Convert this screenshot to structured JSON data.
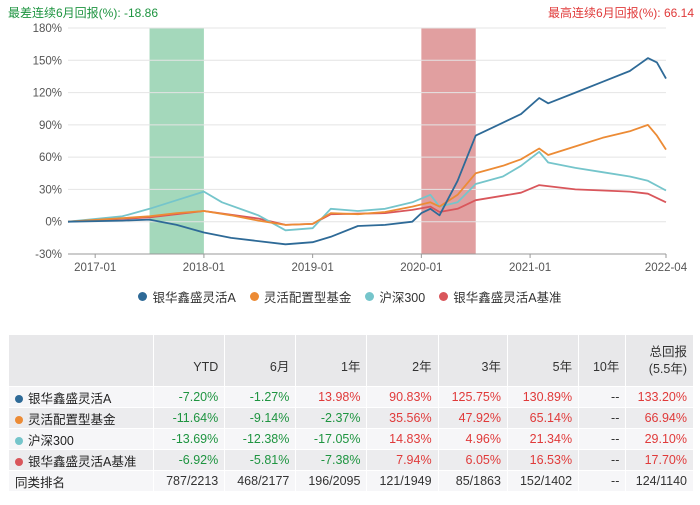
{
  "header": {
    "left": "最差连续6月回报(%): -18.86",
    "right": "最高连续6月回报(%): 66.14"
  },
  "colors": {
    "fund_a": "#2e6a97",
    "flex_category": "#ec8b35",
    "csi300": "#75c5cb",
    "benchmark": "#d9565b",
    "worst_band": "#86cba4",
    "best_band": "#d77f80",
    "positive": "#e03a3a",
    "negative": "#1e9440"
  },
  "chart_data": {
    "type": "line",
    "x_labels": [
      "2017-01",
      "2018-01",
      "2019-01",
      "2020-01",
      "2021-01",
      "2022-04"
    ],
    "y_ticks": [
      "180%",
      "150%",
      "120%",
      "90%",
      "60%",
      "30%",
      "0%",
      "-30%"
    ],
    "ylim": [
      -30,
      180
    ],
    "x_start": "2016-10",
    "x_end": "2022-04",
    "highlight_bands": [
      {
        "type": "worst_6m",
        "from": "2017-07",
        "to": "2018-01"
      },
      {
        "type": "best_6m",
        "from": "2020-01",
        "to": "2020-07"
      }
    ],
    "series": [
      {
        "name": "银华鑫盛灵活A",
        "color": "#2e6a97",
        "points": [
          [
            "2016-10",
            0
          ],
          [
            "2017-04",
            1
          ],
          [
            "2017-07",
            2
          ],
          [
            "2017-10",
            -3
          ],
          [
            "2018-01",
            -10
          ],
          [
            "2018-04",
            -15
          ],
          [
            "2018-07",
            -18
          ],
          [
            "2018-10",
            -21
          ],
          [
            "2019-01",
            -19
          ],
          [
            "2019-03",
            -14
          ],
          [
            "2019-06",
            -4
          ],
          [
            "2019-09",
            -3
          ],
          [
            "2019-12",
            0
          ],
          [
            "2020-01",
            8
          ],
          [
            "2020-02",
            12
          ],
          [
            "2020-03",
            6
          ],
          [
            "2020-05",
            38
          ],
          [
            "2020-07",
            80
          ],
          [
            "2020-10",
            92
          ],
          [
            "2020-12",
            100
          ],
          [
            "2021-02",
            115
          ],
          [
            "2021-03",
            110
          ],
          [
            "2021-06",
            120
          ],
          [
            "2021-09",
            130
          ],
          [
            "2021-12",
            140
          ],
          [
            "2022-02",
            152
          ],
          [
            "2022-03",
            148
          ],
          [
            "2022-04",
            133
          ]
        ]
      },
      {
        "name": "灵活配置型基金",
        "color": "#ec8b35",
        "points": [
          [
            "2016-10",
            0
          ],
          [
            "2017-07",
            5
          ],
          [
            "2017-10",
            8
          ],
          [
            "2018-01",
            10
          ],
          [
            "2018-04",
            6
          ],
          [
            "2018-07",
            1
          ],
          [
            "2018-10",
            -3
          ],
          [
            "2019-01",
            -2
          ],
          [
            "2019-03",
            8
          ],
          [
            "2019-06",
            7
          ],
          [
            "2019-09",
            9
          ],
          [
            "2019-12",
            14
          ],
          [
            "2020-02",
            18
          ],
          [
            "2020-03",
            14
          ],
          [
            "2020-05",
            25
          ],
          [
            "2020-07",
            45
          ],
          [
            "2020-10",
            52
          ],
          [
            "2020-12",
            58
          ],
          [
            "2021-02",
            68
          ],
          [
            "2021-03",
            62
          ],
          [
            "2021-06",
            70
          ],
          [
            "2021-09",
            78
          ],
          [
            "2021-12",
            84
          ],
          [
            "2022-02",
            90
          ],
          [
            "2022-03",
            80
          ],
          [
            "2022-04",
            67
          ]
        ]
      },
      {
        "name": "沪深300",
        "color": "#75c5cb",
        "points": [
          [
            "2016-10",
            0
          ],
          [
            "2017-04",
            5
          ],
          [
            "2017-07",
            12
          ],
          [
            "2017-10",
            20
          ],
          [
            "2018-01",
            28
          ],
          [
            "2018-03",
            18
          ],
          [
            "2018-07",
            6
          ],
          [
            "2018-10",
            -8
          ],
          [
            "2019-01",
            -6
          ],
          [
            "2019-03",
            12
          ],
          [
            "2019-06",
            10
          ],
          [
            "2019-09",
            12
          ],
          [
            "2019-12",
            18
          ],
          [
            "2020-02",
            25
          ],
          [
            "2020-03",
            14
          ],
          [
            "2020-05",
            18
          ],
          [
            "2020-07",
            35
          ],
          [
            "2020-10",
            42
          ],
          [
            "2020-12",
            52
          ],
          [
            "2021-02",
            65
          ],
          [
            "2021-03",
            55
          ],
          [
            "2021-06",
            50
          ],
          [
            "2021-09",
            46
          ],
          [
            "2021-12",
            42
          ],
          [
            "2022-02",
            38
          ],
          [
            "2022-04",
            29
          ]
        ]
      },
      {
        "name": "银华鑫盛灵活A基准",
        "color": "#d9565b",
        "points": [
          [
            "2016-10",
            0
          ],
          [
            "2017-07",
            4
          ],
          [
            "2018-01",
            10
          ],
          [
            "2018-07",
            3
          ],
          [
            "2018-10",
            -3
          ],
          [
            "2019-01",
            -2
          ],
          [
            "2019-03",
            7
          ],
          [
            "2019-09",
            8
          ],
          [
            "2019-12",
            11
          ],
          [
            "2020-02",
            14
          ],
          [
            "2020-03",
            9
          ],
          [
            "2020-05",
            12
          ],
          [
            "2020-07",
            20
          ],
          [
            "2020-12",
            27
          ],
          [
            "2021-02",
            34
          ],
          [
            "2021-06",
            30
          ],
          [
            "2021-09",
            29
          ],
          [
            "2021-12",
            28
          ],
          [
            "2022-02",
            26
          ],
          [
            "2022-04",
            18
          ]
        ]
      }
    ]
  },
  "table": {
    "headers": [
      "",
      "YTD",
      "6月",
      "1年",
      "2年",
      "3年",
      "5年",
      "10年",
      "总回报\n(5.5年)"
    ],
    "rows": [
      {
        "name": "银华鑫盛灵活A",
        "dot": "#2e6a97",
        "values": [
          "-7.20%",
          "-1.27%",
          "13.98%",
          "90.83%",
          "125.75%",
          "130.89%",
          "--",
          "133.20%"
        ]
      },
      {
        "name": "灵活配置型基金",
        "dot": "#ec8b35",
        "values": [
          "-11.64%",
          "-9.14%",
          "-2.37%",
          "35.56%",
          "47.92%",
          "65.14%",
          "--",
          "66.94%"
        ]
      },
      {
        "name": "沪深300",
        "dot": "#75c5cb",
        "values": [
          "-13.69%",
          "-12.38%",
          "-17.05%",
          "14.83%",
          "4.96%",
          "21.34%",
          "--",
          "29.10%"
        ]
      },
      {
        "name": "银华鑫盛灵活A基准",
        "dot": "#d9565b",
        "values": [
          "-6.92%",
          "-5.81%",
          "-7.38%",
          "7.94%",
          "6.05%",
          "16.53%",
          "--",
          "17.70%"
        ]
      },
      {
        "name": "同类排名",
        "dot": "",
        "values": [
          "787/2213",
          "468/2177",
          "196/2095",
          "121/1949",
          "85/1863",
          "152/1402",
          "--",
          "124/1140"
        ]
      }
    ]
  }
}
